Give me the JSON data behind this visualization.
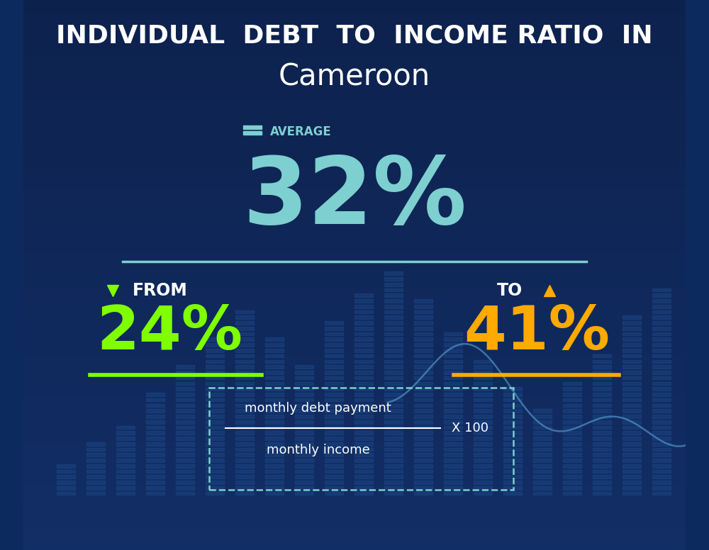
{
  "title_line1": "INDIVIDUAL  DEBT  TO  INCOME RATIO  IN",
  "title_line2": "Cameroon",
  "avg_label": "AVERAGE",
  "avg_value": "32%",
  "from_label": "FROM",
  "from_value": "24%",
  "to_label": "TO",
  "to_value": "41%",
  "formula_numerator": "monthly debt payment",
  "formula_denominator": "monthly income",
  "formula_multiplier": "X 100",
  "bg_color_top": "#0d2a5e",
  "bg_color_bottom": "#0a1f4a",
  "title1_color": "#ffffff",
  "title2_color": "#ffffff",
  "avg_label_color": "#7ecfcf",
  "avg_value_color": "#7ecfcf",
  "from_label_color": "#ffffff",
  "from_value_color": "#7fff00",
  "to_label_color": "#ffffff",
  "to_value_color": "#ffaa00",
  "underline_from_color": "#7fff00",
  "underline_to_color": "#ffaa00",
  "separator_color": "#7ecfcf",
  "formula_color": "#ffffff",
  "dashed_border_color": "#7ecfcf",
  "arrow_down_color": "#7fff00",
  "arrow_up_color": "#ffaa00",
  "avg_icon_color": "#7ecfcf",
  "line_chart_color": "#5599cc",
  "bar_color": "#1a3a7a",
  "dot_bar_color": "#1e4080"
}
